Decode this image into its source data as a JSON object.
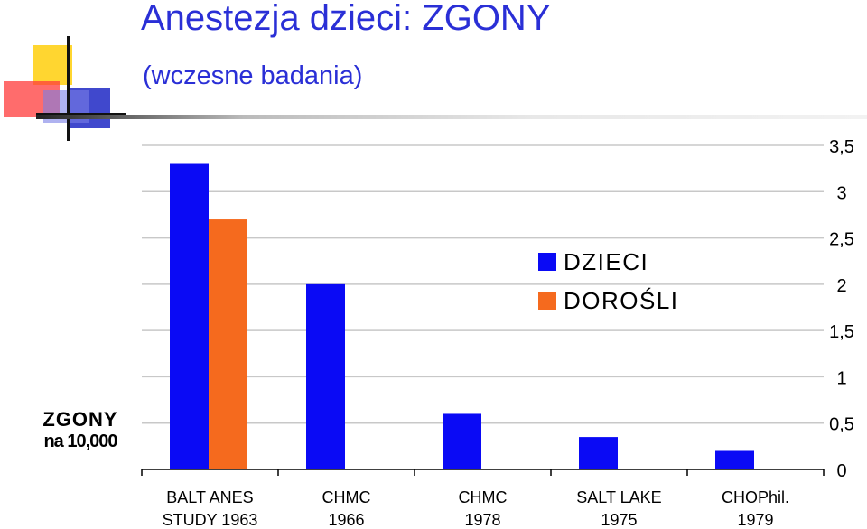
{
  "header": {
    "title": "Anestezja dzieci: ZGONY",
    "subtitle": "(wczesne badania)"
  },
  "colors": {
    "title": "#2a2fd6",
    "dzieci": "#0a0af5",
    "dorosli": "#f56a1e",
    "grid": "#c8c8c8"
  },
  "chart_data": {
    "type": "bar",
    "ylabel": [
      "ZGONY",
      "na 10,000"
    ],
    "categories": [
      [
        "BALT ANES",
        "STUDY 1963"
      ],
      [
        "CHMC",
        "1966"
      ],
      [
        "CHMC",
        "1978"
      ],
      [
        "SALT LAKE",
        "1975"
      ],
      [
        "CHOPhil.",
        "1979"
      ]
    ],
    "series": [
      {
        "name": "DZIECI",
        "values": [
          3.3,
          2.0,
          0.6,
          0.35,
          0.2
        ]
      },
      {
        "name": "DOROŚLI",
        "values": [
          2.7,
          null,
          null,
          null,
          null
        ]
      }
    ],
    "ylim": [
      0,
      3.5
    ],
    "yticks": [
      "0",
      "0,5",
      "1",
      "1,5",
      "2",
      "2,5",
      "3",
      "3,5"
    ],
    "yaxis_side": "right",
    "grid": true,
    "legend_position": "center-right"
  }
}
